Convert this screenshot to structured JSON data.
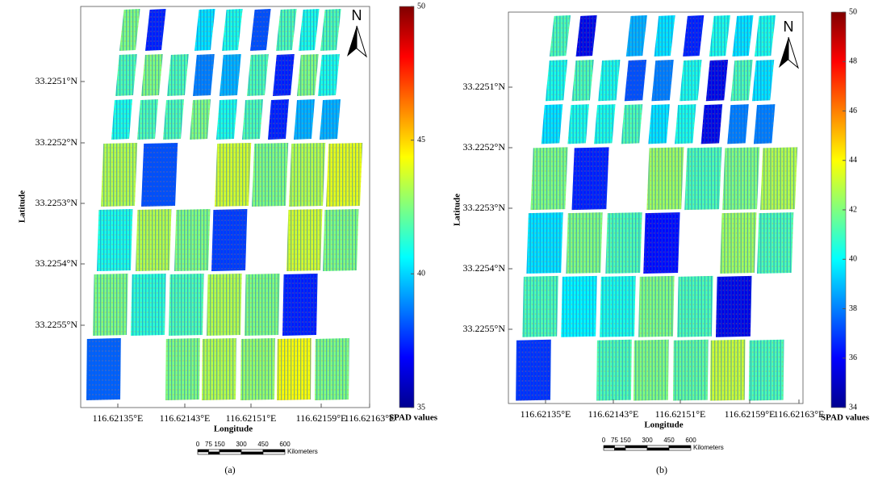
{
  "panels": [
    {
      "caption": "(a)",
      "y_label": "Latitude",
      "x_label": "Longitude",
      "y_ticks": [
        "33.2251°N",
        "33.2252°N",
        "33.2253°N",
        "33.2254°N",
        "33.2255°N"
      ],
      "x_ticks": [
        "116.62135°E",
        "116.62143°E",
        "116.62151°E",
        "116.62159°E",
        "116.62163°E"
      ],
      "north": "N",
      "colorbar": {
        "title": "SPAD values",
        "range": [
          35,
          50
        ],
        "ticks": [
          35,
          40,
          45,
          50
        ]
      },
      "scale_bar": {
        "labels": [
          "0",
          "75",
          "150",
          "300",
          "450",
          "600"
        ],
        "unit": "Kilometers"
      }
    },
    {
      "caption": "(b)",
      "y_label": "Latitude",
      "x_label": "Longitude",
      "y_ticks": [
        "33.2251°N",
        "33.2252°N",
        "33.2253°N",
        "33.2254°N",
        "33.2255°N"
      ],
      "x_ticks": [
        "116.62135°E",
        "116.62143°E",
        "116.62151°E",
        "116.62159°E",
        "116.62163°E"
      ],
      "north": "N",
      "colorbar": {
        "title": "SPAD values",
        "range": [
          34,
          50
        ],
        "ticks": [
          34,
          36,
          38,
          40,
          42,
          44,
          46,
          48,
          50
        ]
      },
      "scale_bar": {
        "labels": [
          "0",
          "75",
          "150",
          "300",
          "450",
          "600"
        ],
        "unit": "Kilometers"
      }
    }
  ]
}
